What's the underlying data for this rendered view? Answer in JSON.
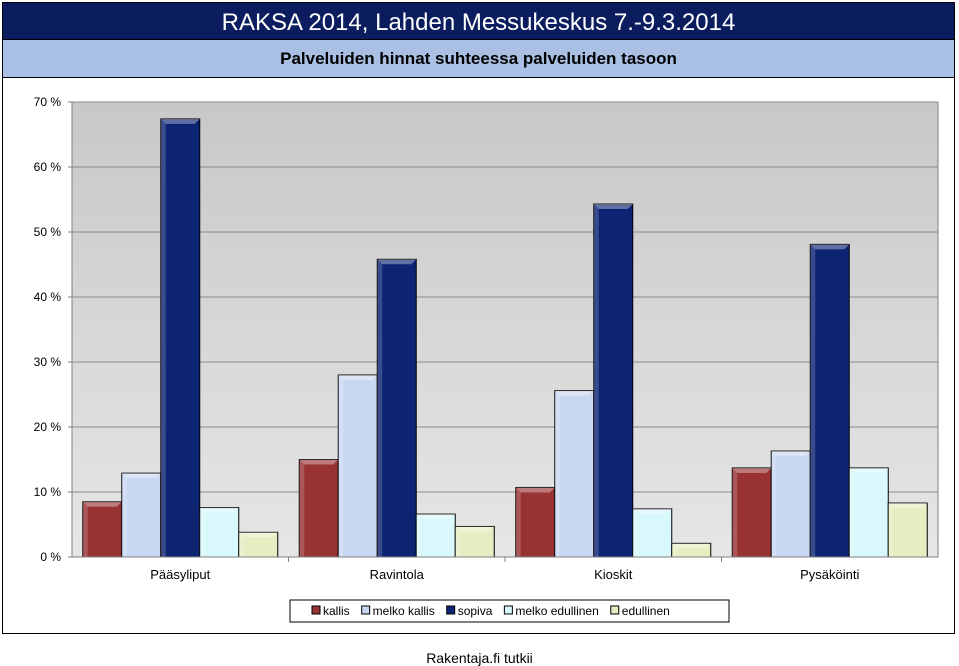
{
  "header": {
    "title": "RAKSA 2014, Lahden Messukeskus 7.-9.3.2014",
    "subtitle": "Palveluiden hinnat suhteessa palveluiden tasoon"
  },
  "footer": {
    "text": "Rakentaja.fi tutkii"
  },
  "chart_data": {
    "type": "bar",
    "title": "Palveluiden hinnat suhteessa palveluiden tasoon",
    "categories": [
      "Pääsyliput",
      "Ravintola",
      "Kioskit",
      "Pysäköinti"
    ],
    "series": [
      {
        "name": "kallis",
        "values": [
          8.5,
          15.0,
          10.7,
          13.7
        ],
        "color": "#993333"
      },
      {
        "name": "melko kallis",
        "values": [
          12.9,
          28.0,
          25.6,
          16.3
        ],
        "color": "#c9d8f2"
      },
      {
        "name": "sopiva",
        "values": [
          67.4,
          45.8,
          54.3,
          48.1
        ],
        "color": "#0d2473"
      },
      {
        "name": "melko edullinen",
        "values": [
          7.6,
          6.6,
          7.4,
          13.7
        ],
        "color": "#d9f8fb"
      },
      {
        "name": "edullinen",
        "values": [
          3.8,
          4.7,
          2.1,
          8.3
        ],
        "color": "#e4eec2"
      }
    ],
    "yticks": [
      "0 %",
      "10 %",
      "20 %",
      "30 %",
      "40 %",
      "50 %",
      "60 %",
      "70 %"
    ],
    "ylim": [
      0,
      70
    ],
    "grid": true,
    "legend_position": "bottom"
  }
}
